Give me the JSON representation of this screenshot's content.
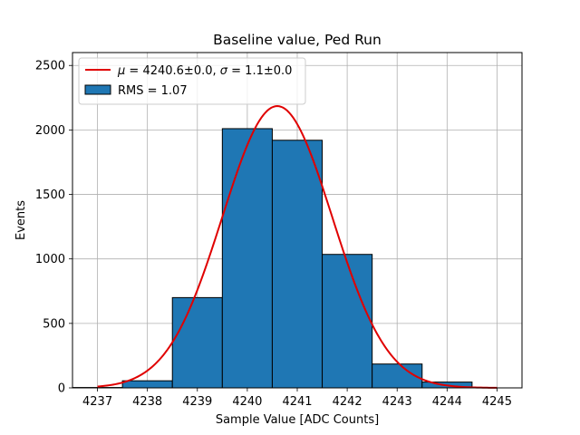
{
  "chart_data": {
    "type": "bar",
    "title": "Baseline value, Ped Run",
    "xlabel": "Sample Value [ADC Counts]",
    "ylabel": "Events",
    "xlim": [
      4236.5,
      4245.5
    ],
    "ylim": [
      0,
      2600
    ],
    "x_ticks": [
      4237,
      4238,
      4239,
      4240,
      4241,
      4242,
      4243,
      4244,
      4245
    ],
    "x_tick_labels": [
      "4237",
      "4238",
      "4239",
      "4240",
      "4241",
      "4242",
      "4243",
      "4244",
      "4245"
    ],
    "y_ticks": [
      0,
      500,
      1000,
      1500,
      2000,
      2500
    ],
    "y_tick_labels": [
      "0",
      "500",
      "1000",
      "1500",
      "2000",
      "2500"
    ],
    "grid": true,
    "legend_position": "upper-left",
    "histogram": {
      "name": "RMS = 1.07",
      "color": "#1f77b4",
      "edgecolor": "#000000",
      "bin_edges": [
        4236.5,
        4237.5,
        4238.5,
        4239.5,
        4240.5,
        4241.5,
        4242.5,
        4243.5,
        4244.5
      ],
      "counts": [
        3,
        55,
        700,
        2010,
        1920,
        1035,
        185,
        45
      ]
    },
    "fit": {
      "name_parts": [
        "μ",
        " = 4240.6±0.0, ",
        "σ",
        " = 1.1±0.0"
      ],
      "color": "#e00000",
      "mu": 4240.6,
      "sigma": 1.1,
      "amplitude": 2185,
      "x_range": [
        4237,
        4245
      ]
    }
  }
}
